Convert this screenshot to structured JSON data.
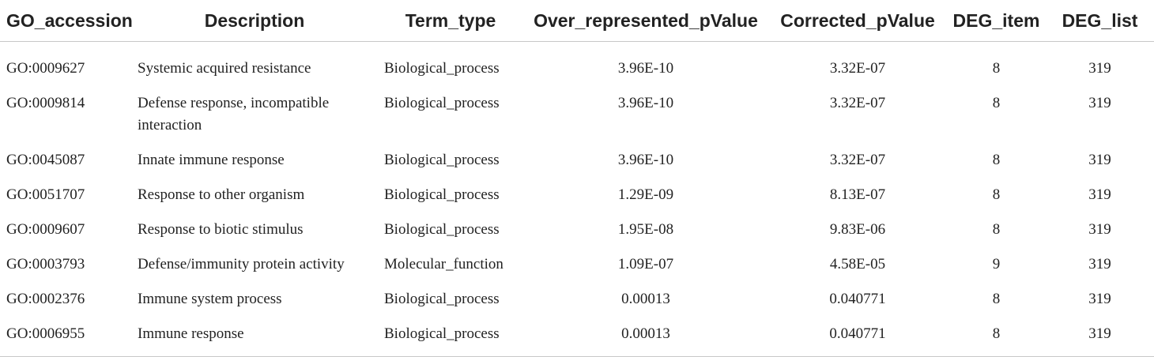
{
  "table": {
    "headers": {
      "go_accession": "GO_accession",
      "description": "Description",
      "term_type": "Term_type",
      "over_pvalue": "Over_represented_pValue",
      "corrected_pvalue": "Corrected_pValue",
      "deg_item": "DEG_item",
      "deg_list": "DEG_list"
    },
    "rows": [
      {
        "go": "GO:0009627",
        "desc": "Systemic acquired resistance",
        "term": "Biological_process",
        "over": "3.96E-10",
        "corr": "3.32E-07",
        "item": "8",
        "list": "319"
      },
      {
        "go": "GO:0009814",
        "desc": "Defense response, incompatible interaction",
        "term": "Biological_process",
        "over": "3.96E-10",
        "corr": "3.32E-07",
        "item": "8",
        "list": "319"
      },
      {
        "go": "GO:0045087",
        "desc": "Innate immune response",
        "term": "Biological_process",
        "over": "3.96E-10",
        "corr": "3.32E-07",
        "item": "8",
        "list": "319"
      },
      {
        "go": "GO:0051707",
        "desc": "Response to other organism",
        "term": "Biological_process",
        "over": "1.29E-09",
        "corr": "8.13E-07",
        "item": "8",
        "list": "319"
      },
      {
        "go": "GO:0009607",
        "desc": "Response to biotic stimulus",
        "term": "Biological_process",
        "over": "1.95E-08",
        "corr": "9.83E-06",
        "item": "8",
        "list": "319"
      },
      {
        "go": "GO:0003793",
        "desc": "Defense/immunity protein activity",
        "term": "Molecular_function",
        "over": "1.09E-07",
        "corr": "4.58E-05",
        "item": "9",
        "list": "319"
      },
      {
        "go": "GO:0002376",
        "desc": "Immune system process",
        "term": "Biological_process",
        "over": "0.00013",
        "corr": "0.040771",
        "item": "8",
        "list": "319"
      },
      {
        "go": "GO:0006955",
        "desc": "Immune response",
        "term": "Biological_process",
        "over": "0.00013",
        "corr": "0.040771",
        "item": "8",
        "list": "319"
      }
    ]
  }
}
